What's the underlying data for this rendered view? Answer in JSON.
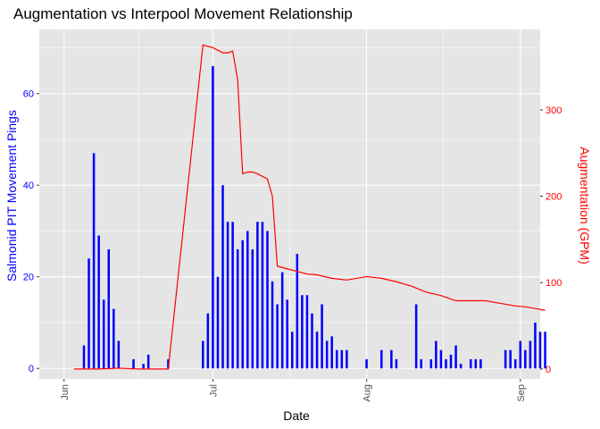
{
  "chart_data": {
    "type": "bar",
    "title": "Augmentation vs Interpool Movement Relationship",
    "xlabel": "Date",
    "ylabel": "Salmonid PIT Movement Pings",
    "y2label": "Augmentation (GPM)",
    "colors": {
      "bars": "#0000ff",
      "line": "#ff0000",
      "panel": "#e5e5e5",
      "grid": "#ffffff"
    },
    "xlim": [
      "2021-05-27",
      "2021-09-05"
    ],
    "ylim": [
      -2.3,
      74
    ],
    "y2lim": [
      -11.5,
      393
    ],
    "y_ticks": [
      0,
      20,
      40,
      60
    ],
    "y2_ticks": [
      0,
      100,
      200,
      300
    ],
    "x_ticks": [
      {
        "date": "2021-06-01",
        "label": "Jun"
      },
      {
        "date": "2021-07-01",
        "label": "Jul"
      },
      {
        "date": "2021-08-01",
        "label": "Aug"
      },
      {
        "date": "2021-09-01",
        "label": "Sep"
      }
    ],
    "grid": true,
    "legend": "none",
    "series": [
      {
        "name": "Salmonid PIT Movement Pings",
        "type": "bar",
        "axis": "left",
        "points": [
          {
            "x": "2021-06-05",
            "y": 5
          },
          {
            "x": "2021-06-06",
            "y": 24
          },
          {
            "x": "2021-06-07",
            "y": 47
          },
          {
            "x": "2021-06-08",
            "y": 29
          },
          {
            "x": "2021-06-09",
            "y": 15
          },
          {
            "x": "2021-06-10",
            "y": 26
          },
          {
            "x": "2021-06-11",
            "y": 13
          },
          {
            "x": "2021-06-12",
            "y": 6
          },
          {
            "x": "2021-06-15",
            "y": 2
          },
          {
            "x": "2021-06-17",
            "y": 1
          },
          {
            "x": "2021-06-18",
            "y": 3
          },
          {
            "x": "2021-06-22",
            "y": 2
          },
          {
            "x": "2021-06-29",
            "y": 6
          },
          {
            "x": "2021-06-30",
            "y": 12
          },
          {
            "x": "2021-07-01",
            "y": 66
          },
          {
            "x": "2021-07-02",
            "y": 20
          },
          {
            "x": "2021-07-03",
            "y": 40
          },
          {
            "x": "2021-07-04",
            "y": 32
          },
          {
            "x": "2021-07-05",
            "y": 32
          },
          {
            "x": "2021-07-06",
            "y": 26
          },
          {
            "x": "2021-07-07",
            "y": 28
          },
          {
            "x": "2021-07-08",
            "y": 30
          },
          {
            "x": "2021-07-09",
            "y": 26
          },
          {
            "x": "2021-07-10",
            "y": 32
          },
          {
            "x": "2021-07-11",
            "y": 32
          },
          {
            "x": "2021-07-12",
            "y": 30
          },
          {
            "x": "2021-07-13",
            "y": 19
          },
          {
            "x": "2021-07-14",
            "y": 14
          },
          {
            "x": "2021-07-15",
            "y": 21
          },
          {
            "x": "2021-07-16",
            "y": 15
          },
          {
            "x": "2021-07-17",
            "y": 8
          },
          {
            "x": "2021-07-18",
            "y": 25
          },
          {
            "x": "2021-07-19",
            "y": 16
          },
          {
            "x": "2021-07-20",
            "y": 16
          },
          {
            "x": "2021-07-21",
            "y": 12
          },
          {
            "x": "2021-07-22",
            "y": 8
          },
          {
            "x": "2021-07-23",
            "y": 14
          },
          {
            "x": "2021-07-24",
            "y": 6
          },
          {
            "x": "2021-07-25",
            "y": 7
          },
          {
            "x": "2021-07-26",
            "y": 4
          },
          {
            "x": "2021-07-27",
            "y": 4
          },
          {
            "x": "2021-07-28",
            "y": 4
          },
          {
            "x": "2021-08-01",
            "y": 2
          },
          {
            "x": "2021-08-04",
            "y": 4
          },
          {
            "x": "2021-08-06",
            "y": 4
          },
          {
            "x": "2021-08-07",
            "y": 2
          },
          {
            "x": "2021-08-11",
            "y": 14
          },
          {
            "x": "2021-08-12",
            "y": 2
          },
          {
            "x": "2021-08-14",
            "y": 2
          },
          {
            "x": "2021-08-15",
            "y": 6
          },
          {
            "x": "2021-08-16",
            "y": 4
          },
          {
            "x": "2021-08-17",
            "y": 2
          },
          {
            "x": "2021-08-18",
            "y": 3
          },
          {
            "x": "2021-08-19",
            "y": 5
          },
          {
            "x": "2021-08-20",
            "y": 1
          },
          {
            "x": "2021-08-22",
            "y": 2
          },
          {
            "x": "2021-08-23",
            "y": 2
          },
          {
            "x": "2021-08-24",
            "y": 2
          },
          {
            "x": "2021-08-29",
            "y": 4
          },
          {
            "x": "2021-08-30",
            "y": 4
          },
          {
            "x": "2021-08-31",
            "y": 2
          },
          {
            "x": "2021-09-01",
            "y": 6
          },
          {
            "x": "2021-09-02",
            "y": 4
          },
          {
            "x": "2021-09-03",
            "y": 6
          },
          {
            "x": "2021-09-04",
            "y": 10
          },
          {
            "x": "2021-09-05",
            "y": 8
          },
          {
            "x": "2021-09-06",
            "y": 8
          }
        ]
      },
      {
        "name": "Augmentation (GPM)",
        "type": "line",
        "axis": "right",
        "points": [
          {
            "x": "2021-06-03",
            "y": 0
          },
          {
            "x": "2021-06-08",
            "y": 0
          },
          {
            "x": "2021-06-12",
            "y": 1
          },
          {
            "x": "2021-06-16",
            "y": 0
          },
          {
            "x": "2021-06-20",
            "y": 0
          },
          {
            "x": "2021-06-22",
            "y": 0
          },
          {
            "x": "2021-06-29",
            "y": 375
          },
          {
            "x": "2021-07-01",
            "y": 372
          },
          {
            "x": "2021-07-03",
            "y": 366
          },
          {
            "x": "2021-07-04",
            "y": 366
          },
          {
            "x": "2021-07-05",
            "y": 368
          },
          {
            "x": "2021-07-06",
            "y": 335
          },
          {
            "x": "2021-07-07",
            "y": 226
          },
          {
            "x": "2021-07-08",
            "y": 228
          },
          {
            "x": "2021-07-09",
            "y": 228
          },
          {
            "x": "2021-07-10",
            "y": 226
          },
          {
            "x": "2021-07-11",
            "y": 223
          },
          {
            "x": "2021-07-12",
            "y": 220
          },
          {
            "x": "2021-07-13",
            "y": 200
          },
          {
            "x": "2021-07-14",
            "y": 119
          },
          {
            "x": "2021-07-16",
            "y": 116
          },
          {
            "x": "2021-07-18",
            "y": 113
          },
          {
            "x": "2021-07-20",
            "y": 110
          },
          {
            "x": "2021-07-22",
            "y": 109
          },
          {
            "x": "2021-07-25",
            "y": 105
          },
          {
            "x": "2021-07-28",
            "y": 103
          },
          {
            "x": "2021-08-01",
            "y": 107
          },
          {
            "x": "2021-08-04",
            "y": 105
          },
          {
            "x": "2021-08-07",
            "y": 101
          },
          {
            "x": "2021-08-10",
            "y": 96
          },
          {
            "x": "2021-08-13",
            "y": 89
          },
          {
            "x": "2021-08-16",
            "y": 85
          },
          {
            "x": "2021-08-19",
            "y": 79
          },
          {
            "x": "2021-08-25",
            "y": 79
          },
          {
            "x": "2021-08-28",
            "y": 76
          },
          {
            "x": "2021-08-31",
            "y": 73
          },
          {
            "x": "2021-09-02",
            "y": 72
          },
          {
            "x": "2021-09-04",
            "y": 70
          },
          {
            "x": "2021-09-06",
            "y": 68
          }
        ]
      }
    ]
  }
}
